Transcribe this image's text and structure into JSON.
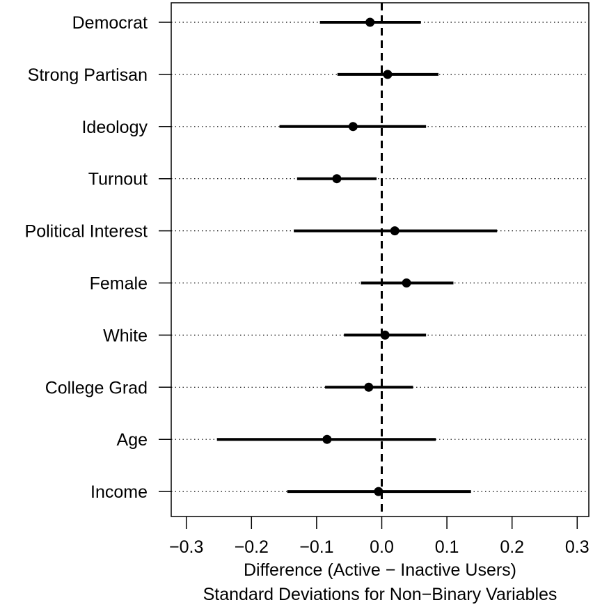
{
  "chart_data": {
    "type": "scatter",
    "subtype": "dot-and-whisker",
    "xlabel": [
      "Difference (Active − Inactive Users)",
      "Standard Deviations for Non−Binary Variables"
    ],
    "xlim": [
      -0.33,
      0.33
    ],
    "xticks": [
      -0.3,
      -0.2,
      -0.1,
      0.0,
      0.1,
      0.2,
      0.3
    ],
    "xtick_labels": [
      "−0.3",
      "−0.2",
      "−0.1",
      "0.0",
      "0.1",
      "0.2",
      "0.3"
    ],
    "reference_line": 0.0,
    "grid": "horizontal dotted",
    "categories": [
      "Democrat",
      "Strong Partisan",
      "Ideology",
      "Turnout",
      "Political Interest",
      "Female",
      "White",
      "College Grad",
      "Age",
      "Income"
    ],
    "estimates": [
      -0.018,
      0.009,
      -0.044,
      -0.069,
      0.02,
      0.038,
      0.005,
      -0.02,
      -0.084,
      -0.005
    ],
    "lower": [
      -0.095,
      -0.068,
      -0.157,
      -0.13,
      -0.135,
      -0.032,
      -0.058,
      -0.087,
      -0.253,
      -0.145
    ],
    "upper": [
      0.06,
      0.087,
      0.068,
      -0.008,
      0.177,
      0.11,
      0.068,
      0.048,
      0.083,
      0.137
    ]
  }
}
